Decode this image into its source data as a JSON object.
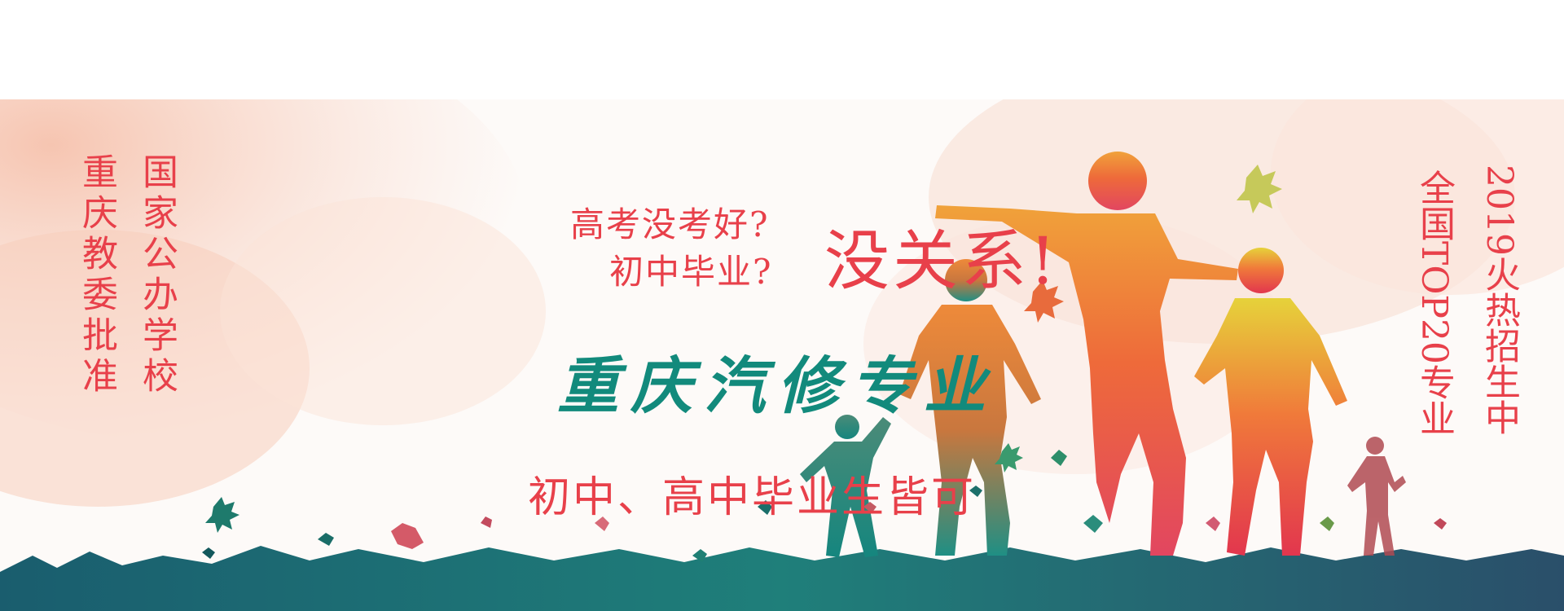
{
  "banner": {
    "left_col1": "重庆教委批准",
    "left_col2": "国家公办学校",
    "headline_exam": "高考没考好?",
    "headline_middle": "初中毕业?",
    "headline_nomatter": "没关系!",
    "headline_major": "重庆汽修专业",
    "headline_eligible": "初中、高中毕业生皆可",
    "right_col1": "全国TOP20专业",
    "right_col2": "2019火热招生中"
  },
  "colors": {
    "red_text": "#e8404a",
    "teal_text": "#128a7c",
    "splash": "#f6c4b2",
    "ground": "#1c6f78"
  }
}
